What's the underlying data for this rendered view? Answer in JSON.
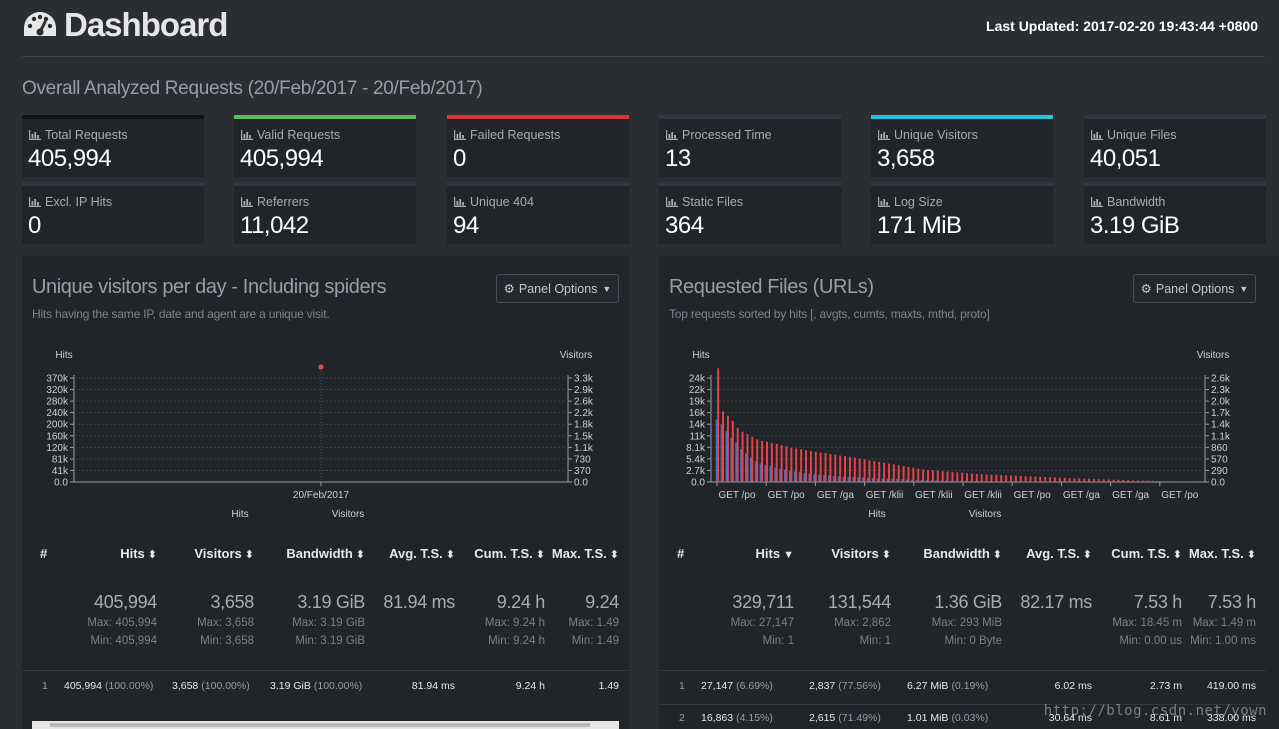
{
  "header": {
    "title": "Dashboard",
    "last_updated": "Last Updated: 2017-02-20 19:43:44 +0800"
  },
  "overall": {
    "title": "Overall Analyzed Requests (20/Feb/2017 - 20/Feb/2017)",
    "cards": [
      {
        "label": "Total Requests",
        "value": "405,994"
      },
      {
        "label": "Valid Requests",
        "value": "405,994"
      },
      {
        "label": "Failed Requests",
        "value": "0"
      },
      {
        "label": "Processed Time",
        "value": "13"
      },
      {
        "label": "Unique Visitors",
        "value": "3,658"
      },
      {
        "label": "Unique Files",
        "value": "40,051"
      },
      {
        "label": "Excl. IP Hits",
        "value": "0"
      },
      {
        "label": "Referrers",
        "value": "11,042"
      },
      {
        "label": "Unique 404",
        "value": "94"
      },
      {
        "label": "Static Files",
        "value": "364"
      },
      {
        "label": "Log Size",
        "value": "171 MiB"
      },
      {
        "label": "Bandwidth",
        "value": "3.19 GiB"
      }
    ]
  },
  "panels": {
    "visitors": {
      "title": "Unique visitors per day - Including spiders",
      "subtitle": "Hits having the same IP, date and agent are a unique visit.",
      "options_label": "Panel Options",
      "columns": [
        "#",
        "Hits",
        "Visitors",
        "Bandwidth",
        "Avg. T.S.",
        "Cum. T.S.",
        "Max. T.S."
      ],
      "summary": {
        "hits": {
          "total": "405,994",
          "max": "Max: 405,994",
          "min": "Min: 405,994"
        },
        "visitors": {
          "total": "3,658",
          "max": "Max: 3,658",
          "min": "Min: 3,658"
        },
        "bandwidth": {
          "total": "3.19 GiB",
          "max": "Max: 3.19 GiB",
          "min": "Min: 3.19 GiB"
        },
        "avg_ts": {
          "total": "81.94 ms"
        },
        "cum_ts": {
          "total": "9.24 h",
          "max": "Max: 9.24 h",
          "min": "Min: 9.24 h"
        },
        "max_ts": {
          "total": "9.24",
          "max": "Max: 1.49",
          "min": "Min: 1.49"
        }
      },
      "rows": [
        {
          "num": "1",
          "hits": "405,994",
          "hits_pct": "(100.00%)",
          "visitors": "3,658",
          "visitors_pct": "(100.00%)",
          "bandwidth": "3.19 GiB",
          "bandwidth_pct": "(100.00%)",
          "avg_ts": "81.94 ms",
          "cum_ts": "9.24 h",
          "max_ts": "1.49"
        }
      ]
    },
    "requests": {
      "title": "Requested Files (URLs)",
      "subtitle": "Top requests sorted by hits [, avgts, cumts, maxts, mthd, proto]",
      "options_label": "Panel Options",
      "columns": [
        "#",
        "Hits",
        "Visitors",
        "Bandwidth",
        "Avg. T.S.",
        "Cum. T.S.",
        "Max. T.S."
      ],
      "summary": {
        "hits": {
          "total": "329,711",
          "max": "Max: 27,147",
          "min": "Min: 1"
        },
        "visitors": {
          "total": "131,544",
          "max": "Max: 2,862",
          "min": "Min: 1"
        },
        "bandwidth": {
          "total": "1.36 GiB",
          "max": "Max: 293 MiB",
          "min": "Min: 0 Byte"
        },
        "avg_ts": {
          "total": "82.17 ms"
        },
        "cum_ts": {
          "total": "7.53 h",
          "max": "Max: 18.45 m",
          "min": "Min: 0.00 us"
        },
        "max_ts": {
          "total": "7.53 h",
          "max": "Max: 1.49 m",
          "min": "Min: 1.00 ms"
        }
      },
      "rows": [
        {
          "num": "1",
          "hits": "27,147",
          "hits_pct": "(6.69%)",
          "visitors": "2,837",
          "visitors_pct": "(77.56%)",
          "bandwidth": "6.27 MiB",
          "bandwidth_pct": "(0.19%)",
          "avg_ts": "6.02 ms",
          "cum_ts": "2.73 m",
          "max_ts": "419.00 ms"
        },
        {
          "num": "2",
          "hits": "16,863",
          "hits_pct": "(4.15%)",
          "visitors": "2,615",
          "visitors_pct": "(71.49%)",
          "bandwidth": "1.01 MiB",
          "bandwidth_pct": "(0.03%)",
          "avg_ts": "30.64 ms",
          "cum_ts": "8.61 m",
          "max_ts": "338.00 ms"
        }
      ]
    }
  },
  "chart_data": [
    {
      "type": "line",
      "title": "Unique visitors per day - Including spiders",
      "categories": [
        "20/Feb/2017"
      ],
      "series": [
        {
          "name": "Hits",
          "values": [
            405994
          ],
          "color": "#e8434a"
        },
        {
          "name": "Visitors",
          "values": [
            3658
          ],
          "color": "#4a7fd4"
        }
      ],
      "y_left_label": "Hits",
      "y_right_label": "Visitors",
      "y_left_ticks": [
        "370k",
        "320k",
        "280k",
        "240k",
        "200k",
        "160k",
        "120k",
        "81k",
        "41k",
        "0.0"
      ],
      "y_right_ticks": [
        "3.3k",
        "2.9k",
        "2.6k",
        "2.2k",
        "1.8k",
        "1.5k",
        "1.1k",
        "730",
        "370",
        "0.0"
      ],
      "legend": [
        "Hits",
        "Visitors"
      ]
    },
    {
      "type": "bar",
      "title": "Requested Files (URLs)",
      "y_left_label": "Hits",
      "y_right_label": "Visitors",
      "y_left_ticks": [
        "24k",
        "22k",
        "19k",
        "16k",
        "14k",
        "11k",
        "8.1k",
        "5.4k",
        "2.7k",
        "0.0"
      ],
      "y_right_ticks": [
        "2.6k",
        "2.3k",
        "2.0k",
        "1.7k",
        "1.4k",
        "1.1k",
        "860",
        "570",
        "290",
        "0.0"
      ],
      "x_ticks": [
        "GET /po",
        "GET /po",
        "GET /ga",
        "GET /klii",
        "GET /klii",
        "GET /klii",
        "GET /po",
        "GET /ga",
        "GET /ga",
        "GET /po"
      ],
      "series": [
        {
          "name": "Hits",
          "color": "#e8434a",
          "values": [
            27147,
            16863,
            15800,
            14600,
            12900,
            12000,
            11400,
            10800,
            10200,
            9800,
            9600,
            9300,
            9100,
            8800,
            8500,
            8200,
            8000,
            7800,
            7600,
            7400,
            7200,
            7000,
            6900,
            6700,
            6500,
            6300,
            6200,
            6000,
            5800,
            5600,
            5400,
            5200,
            5000,
            4800,
            4600,
            4400,
            4200,
            4000,
            3800,
            3600,
            3400,
            3200,
            3000,
            2900,
            2800,
            2700,
            2600,
            2500,
            2400,
            2300,
            2200,
            2100,
            2000,
            1900,
            1850,
            1800,
            1750,
            1700,
            1650,
            1600,
            1550,
            1500,
            1450,
            1400,
            1350,
            1300,
            1250,
            1200,
            1150,
            1100,
            1050,
            1000,
            950,
            900,
            850,
            800,
            760,
            720,
            680,
            640,
            600,
            560,
            520,
            480,
            440,
            400,
            370,
            340,
            310,
            280,
            250,
            220,
            190,
            160,
            130,
            100,
            80,
            60,
            40,
            20
          ]
        },
        {
          "name": "Visitors",
          "color": "#4a7fd4",
          "values": [
            2837,
            2615,
            2300,
            2000,
            1800,
            1500,
            1300,
            1100,
            950,
            850,
            780,
            720,
            660,
            600,
            560,
            520,
            480,
            440,
            410,
            380,
            350,
            330,
            310,
            290,
            270,
            250,
            240,
            230,
            220,
            210,
            200,
            190,
            180,
            170,
            160,
            150,
            140,
            130,
            120,
            110,
            100,
            95,
            90,
            85,
            80,
            75,
            70,
            65,
            60,
            55,
            50,
            48,
            46,
            44,
            42,
            40,
            38,
            36,
            34,
            32,
            30,
            28,
            26,
            24,
            22,
            20,
            19,
            18,
            17,
            16,
            15,
            14,
            13,
            12,
            11,
            10,
            9,
            8,
            7,
            6,
            6,
            5,
            5,
            4,
            4,
            3,
            3,
            3,
            2,
            2,
            2,
            2,
            1,
            1,
            1,
            1,
            1,
            1,
            1,
            1
          ]
        }
      ],
      "ylim_left": [
        0,
        27147
      ],
      "ylim_right": [
        0,
        2837
      ],
      "legend": [
        "Hits",
        "Visitors"
      ]
    }
  ],
  "watermark": "http://blog.csdn.net/yown",
  "colors": {
    "accent_green": "#5cb85c",
    "accent_red": "#d9353b",
    "accent_cyan": "#25c2dc"
  }
}
